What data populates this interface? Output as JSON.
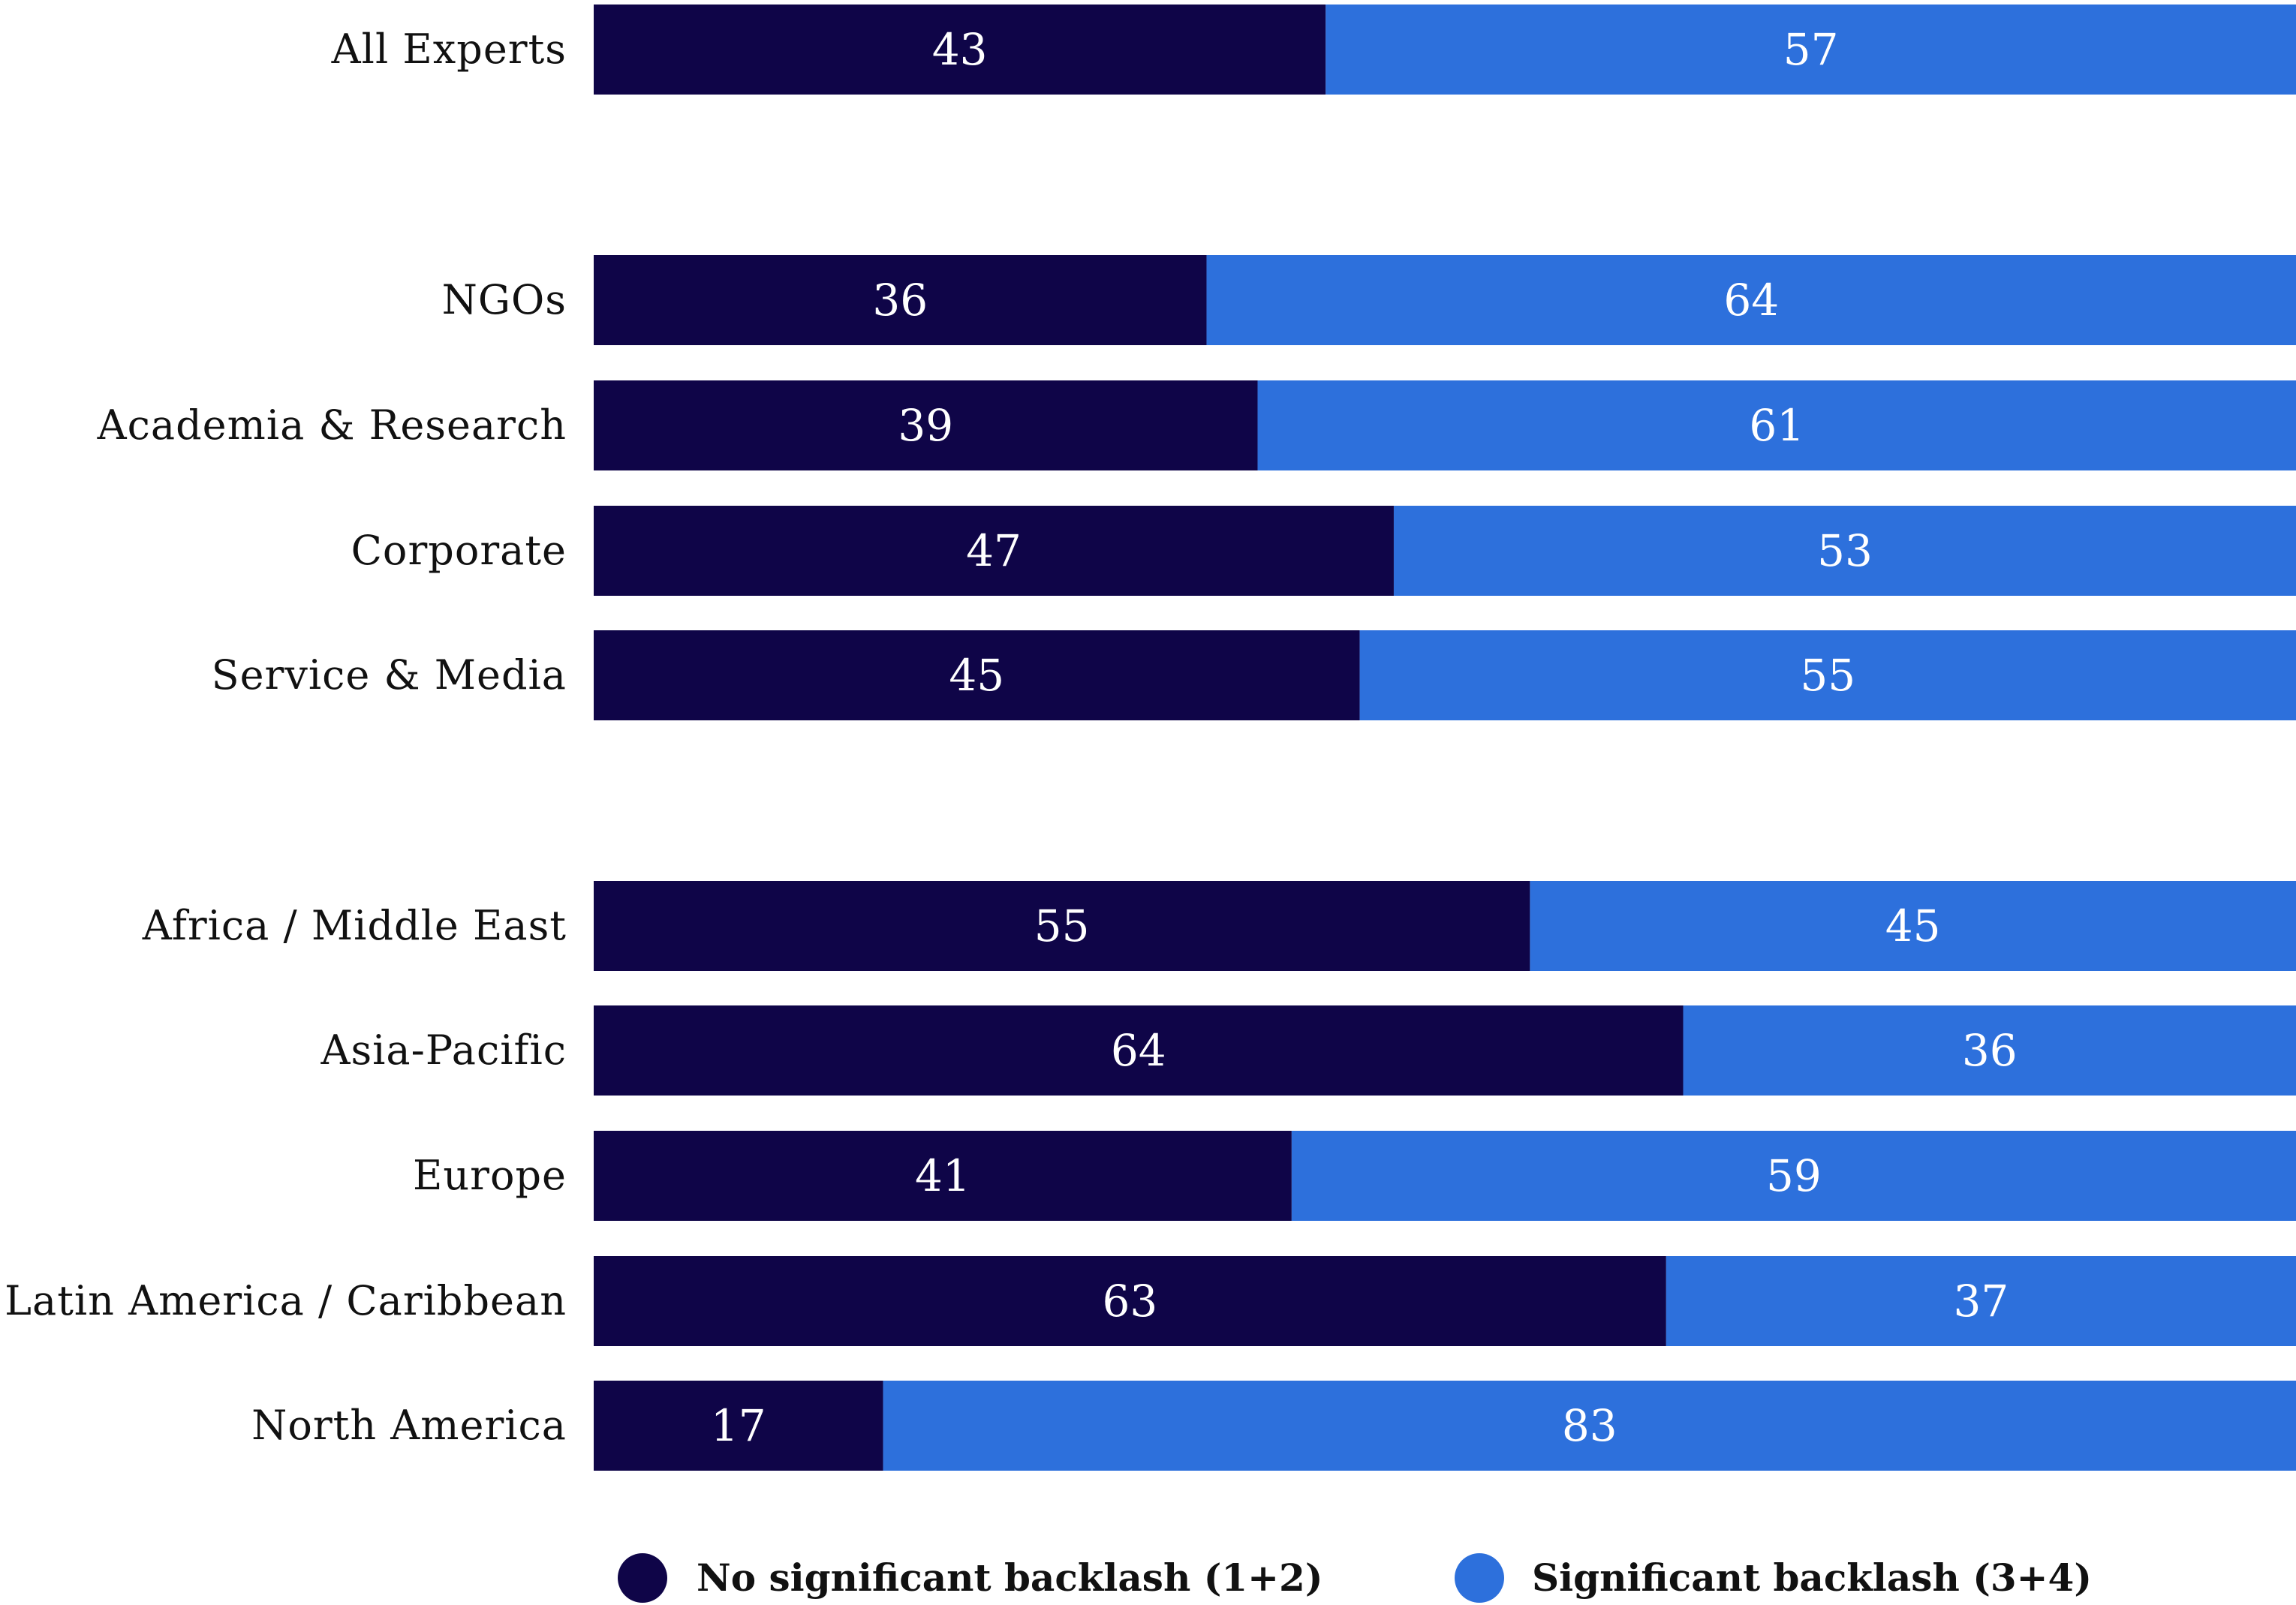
{
  "chart_data": {
    "type": "bar",
    "orientation": "horizontal",
    "stacked": true,
    "percent_stacked": true,
    "categories": [
      "All Experts",
      "NGOs",
      "Academia & Research",
      "Corporate",
      "Service & Media",
      "Africa / Middle East",
      "Asia-Pacific",
      "Europe",
      "Latin America / Caribbean",
      "North America"
    ],
    "groups": [
      [
        "All Experts"
      ],
      [
        "NGOs",
        "Academia & Research",
        "Corporate",
        "Service & Media"
      ],
      [
        "Africa / Middle East",
        "Asia-Pacific",
        "Europe",
        "Latin America / Caribbean",
        "North America"
      ]
    ],
    "series": [
      {
        "name": "No significant backlash (1+2)",
        "color": "#0f0548",
        "values": [
          43,
          36,
          39,
          47,
          45,
          55,
          64,
          41,
          63,
          17
        ]
      },
      {
        "name": "Significant backlash (3+4)",
        "color": "#2d70dc",
        "values": [
          57,
          64,
          61,
          53,
          55,
          45,
          36,
          59,
          37,
          83
        ]
      }
    ],
    "xlim": [
      0,
      100
    ],
    "data_labels": true,
    "grid": false,
    "legend_position": "bottom"
  }
}
